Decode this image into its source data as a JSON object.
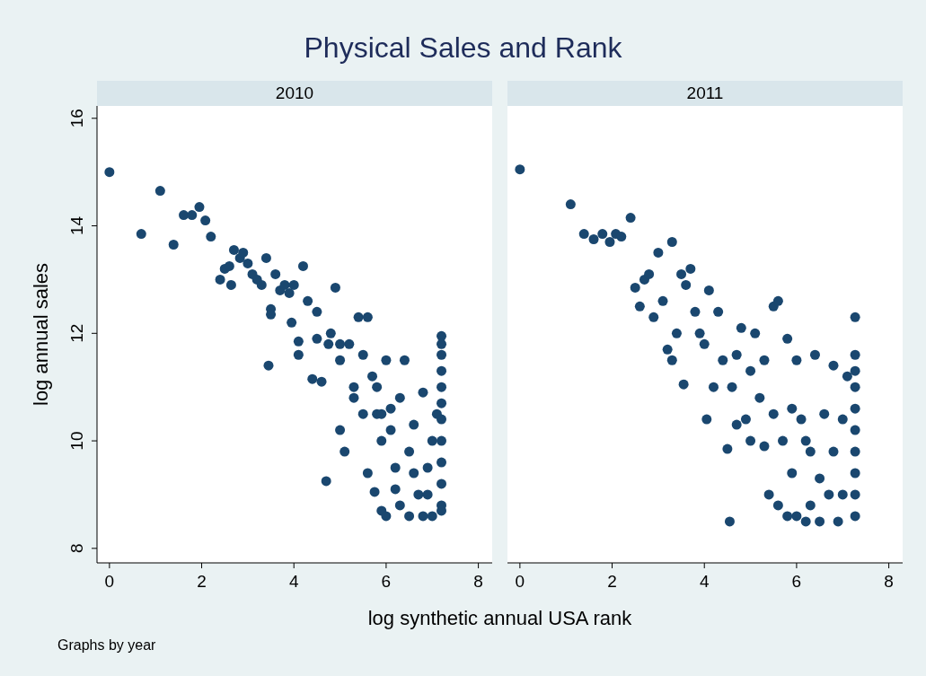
{
  "chart_data": [
    {
      "type": "scatter",
      "title": "Physical Sales and Rank",
      "subtitle": "2010",
      "xlabel": "log synthetic annual USA rank",
      "ylabel": "log annual sales",
      "annotations": [
        "Graphs by year"
      ],
      "xlim": [
        -0.27,
        8.3
      ],
      "ylim": [
        7.73,
        16.23
      ],
      "xticks": [
        0,
        2,
        4,
        6,
        8
      ],
      "yticks": [
        8,
        10,
        12,
        14,
        16
      ],
      "marker": "circle",
      "grid": false,
      "series": [
        {
          "color": "#1a476f",
          "x": [
            0,
            0.69,
            1.1,
            1.39,
            1.61,
            1.79,
            1.95,
            2.08,
            2.2,
            2.4,
            2.5,
            2.6,
            2.64,
            2.7,
            2.83,
            2.9,
            3.0,
            3.1,
            3.2,
            3.3,
            3.4,
            3.45,
            3.5,
            3.5,
            3.6,
            3.7,
            3.8,
            3.9,
            3.95,
            4.0,
            4.1,
            4.1,
            4.2,
            4.3,
            4.4,
            4.5,
            4.6,
            4.7,
            4.75,
            4.8,
            4.9,
            5.0,
            5.0,
            5.1,
            5.2,
            5.3,
            5.4,
            5.5,
            5.6,
            5.6,
            5.7,
            5.75,
            5.8,
            5.9,
            5.9,
            6.0,
            6.0,
            6.1,
            6.2,
            6.3,
            6.3,
            6.4,
            6.5,
            6.5,
            6.6,
            6.7,
            6.8,
            6.8,
            6.9,
            7.0,
            7.0,
            7.1,
            7.2,
            7.2,
            7.2,
            7.2,
            7.2,
            7.2,
            7.2,
            7.2,
            7.2,
            7.2,
            7.2,
            7.2,
            5.5,
            5.8,
            6.1,
            6.6,
            5.3,
            4.5,
            6.2,
            6.9,
            5.9,
            5.0
          ],
          "values": [
            15.0,
            13.85,
            14.65,
            13.65,
            14.2,
            14.2,
            14.35,
            14.1,
            13.8,
            13.0,
            13.2,
            13.25,
            12.9,
            13.55,
            13.4,
            13.5,
            13.3,
            13.1,
            13.0,
            12.9,
            13.4,
            11.4,
            12.45,
            12.35,
            13.1,
            12.8,
            12.9,
            12.75,
            12.2,
            12.9,
            11.85,
            11.6,
            13.25,
            12.6,
            11.15,
            12.4,
            11.1,
            9.25,
            11.8,
            12.0,
            12.85,
            11.5,
            10.2,
            9.8,
            11.8,
            11.0,
            12.3,
            10.5,
            12.3,
            9.4,
            11.2,
            9.05,
            10.5,
            8.7,
            10.0,
            11.5,
            8.6,
            10.2,
            9.5,
            10.8,
            8.8,
            11.5,
            9.8,
            8.6,
            10.3,
            9.0,
            10.9,
            8.6,
            9.5,
            10.0,
            8.6,
            10.5,
            11.95,
            11.8,
            11.6,
            11.3,
            11.0,
            10.7,
            10.4,
            10.0,
            9.6,
            9.2,
            8.8,
            8.7,
            11.6,
            11.0,
            10.6,
            9.4,
            10.8,
            11.9,
            9.1,
            9.0,
            10.5,
            11.8
          ]
        }
      ]
    },
    {
      "type": "scatter",
      "subtitle": "2011",
      "xlim": [
        -0.27,
        8.3
      ],
      "ylim": [
        7.73,
        16.23
      ],
      "xticks": [
        0,
        2,
        4,
        6,
        8
      ],
      "tick_labels": "x",
      "marker": "circle",
      "grid": false,
      "series": [
        {
          "color": "#1a476f",
          "x": [
            0,
            1.1,
            1.39,
            1.6,
            1.79,
            1.95,
            2.08,
            2.2,
            2.4,
            2.5,
            2.6,
            2.7,
            2.8,
            2.9,
            3.0,
            3.1,
            3.2,
            3.3,
            3.3,
            3.4,
            3.5,
            3.55,
            3.6,
            3.7,
            3.8,
            3.9,
            4.0,
            4.05,
            4.1,
            4.2,
            4.3,
            4.4,
            4.5,
            4.55,
            4.6,
            4.7,
            4.8,
            4.9,
            5.0,
            5.1,
            5.2,
            5.3,
            5.4,
            5.5,
            5.5,
            5.6,
            5.6,
            5.7,
            5.8,
            5.8,
            5.9,
            6.0,
            6.0,
            6.1,
            6.2,
            6.3,
            6.4,
            6.5,
            6.6,
            6.7,
            6.8,
            6.9,
            7.0,
            7.0,
            7.1,
            7.27,
            7.27,
            7.27,
            7.27,
            7.27,
            7.27,
            7.27,
            7.27,
            7.27,
            7.27,
            6.2,
            5.9,
            6.5,
            5.3,
            6.3,
            6.8,
            5.0,
            4.7
          ],
          "values": [
            15.05,
            14.4,
            13.85,
            13.75,
            13.85,
            13.7,
            13.85,
            13.8,
            14.15,
            12.85,
            12.5,
            13.0,
            13.1,
            12.3,
            13.5,
            12.6,
            11.7,
            13.7,
            11.5,
            12.0,
            13.1,
            11.05,
            12.9,
            13.2,
            12.4,
            12.0,
            11.8,
            10.4,
            12.8,
            11.0,
            12.4,
            11.5,
            9.85,
            8.5,
            11.0,
            10.3,
            12.1,
            10.4,
            11.3,
            12.0,
            10.8,
            9.9,
            9.0,
            12.5,
            10.5,
            12.6,
            8.8,
            10.0,
            11.9,
            8.6,
            9.4,
            11.5,
            8.6,
            10.4,
            8.5,
            9.8,
            11.6,
            8.5,
            10.5,
            9.0,
            11.4,
            8.5,
            10.4,
            9.0,
            11.2,
            12.3,
            11.6,
            11.3,
            11.0,
            10.6,
            10.2,
            9.8,
            9.4,
            9.0,
            8.6,
            10.0,
            10.6,
            9.3,
            11.5,
            8.8,
            9.8,
            10.0,
            11.6
          ]
        }
      ]
    }
  ]
}
